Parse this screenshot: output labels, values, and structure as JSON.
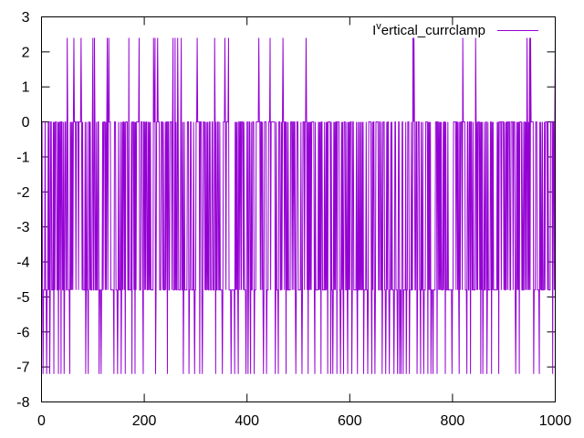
{
  "chart_data": {
    "type": "line",
    "title": "",
    "xlabel": "",
    "ylabel": "",
    "xlim": [
      0,
      1000
    ],
    "ylim": [
      -8,
      3
    ],
    "x_ticks": [
      0,
      200,
      400,
      600,
      800,
      1000
    ],
    "y_ticks": [
      -8,
      -7,
      -6,
      -5,
      -4,
      -3,
      -2,
      -1,
      0,
      1,
      2,
      3
    ],
    "x_tick_labels": [
      "0",
      "200",
      "400",
      "600",
      "800",
      "1000"
    ],
    "y_tick_labels": [
      "-8",
      "-7",
      "-6",
      "-5",
      "-4",
      "-3",
      "-2",
      "-1",
      "0",
      "1",
      "2",
      "3"
    ],
    "grid": false,
    "legend": {
      "position": "top-right",
      "label_prefix": "I",
      "label_superscript": "v",
      "label_rest": "ertical_currclamp"
    },
    "series": [
      {
        "name": "I vertical_currclamp",
        "color": "#9400d3",
        "levels": [
          2.4,
          0,
          -4.8,
          -7.2
        ],
        "n_points": 1000,
        "x_step": 1,
        "spikes_high": [
          50,
          63,
          77,
          100,
          103,
          128,
          131,
          170,
          190,
          218,
          221,
          226,
          256,
          260,
          265,
          272,
          303,
          337,
          357,
          364,
          423,
          445,
          470,
          515,
          723,
          725,
          820,
          845,
          945,
          950,
          952,
          1000
        ],
        "spikes_low": [
          3,
          10,
          16,
          24,
          33,
          38,
          44,
          55,
          86,
          91,
          112,
          116,
          141,
          148,
          155,
          163,
          176,
          182,
          198,
          222,
          245,
          276,
          287,
          298,
          308,
          313,
          339,
          352,
          369,
          376,
          383,
          398,
          402,
          407,
          414,
          432,
          438,
          455,
          461,
          476,
          495,
          507,
          519,
          532,
          544,
          557,
          563,
          567,
          575,
          582,
          588,
          596,
          604,
          615,
          627,
          635,
          643,
          649,
          663,
          670,
          677,
          686,
          693,
          697,
          700,
          704,
          710,
          716,
          731,
          738,
          744,
          752,
          758,
          762,
          770,
          786,
          799,
          813,
          828,
          835,
          855,
          859,
          867,
          876,
          890,
          923,
          930,
          958,
          969,
          995
        ]
      }
    ]
  }
}
